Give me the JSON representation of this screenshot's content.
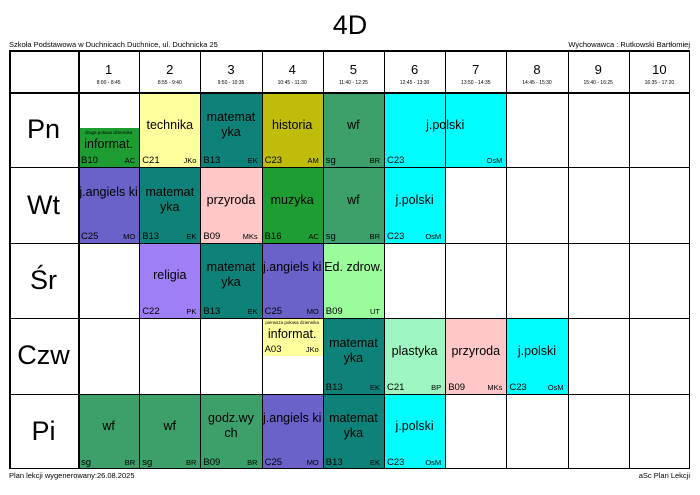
{
  "title": "4D",
  "school": "Szkoła Podstawowa w Duchnicach Duchnice, ul. Duchnicka 25",
  "teacher": "Wychowawca : Rutkowski Bartłomiej",
  "footer_left": "Plan lekcji wygenerowany:26.08.2025",
  "footer_right": "aSc Plan Lekcji",
  "periods": [
    {
      "num": "1",
      "time": "8:00 - 8:45"
    },
    {
      "num": "2",
      "time": "8:55 - 9:40"
    },
    {
      "num": "3",
      "time": "9:50 - 10:35"
    },
    {
      "num": "4",
      "time": "10:45 - 11:30"
    },
    {
      "num": "5",
      "time": "11:40 - 12:25"
    },
    {
      "num": "6",
      "time": "12:45 - 13:30"
    },
    {
      "num": "7",
      "time": "13:50 - 14:35"
    },
    {
      "num": "8",
      "time": "14:45 - 15:30"
    },
    {
      "num": "9",
      "time": "15:40 - 16:25"
    },
    {
      "num": "10",
      "time": "16:35 - 17:20"
    }
  ],
  "days": [
    "Pn",
    "Wt",
    "Śr",
    "Czw",
    "Pi"
  ],
  "lessons": [
    {
      "day": 0,
      "p": 0,
      "span": 1,
      "subject": "informat.",
      "room": "B10",
      "teacher": "AC",
      "color": "#1e9e32",
      "note": "druga połowa dziennika",
      "half": "bottom"
    },
    {
      "day": 0,
      "p": 1,
      "span": 1,
      "subject": "technika",
      "room": "C21",
      "teacher": "JKo",
      "color": "#ffff9e"
    },
    {
      "day": 0,
      "p": 2,
      "span": 1,
      "subject": "matemat yka",
      "room": "B13",
      "teacher": "EK",
      "color": "#0e8279"
    },
    {
      "day": 0,
      "p": 3,
      "span": 1,
      "subject": "historia",
      "room": "C23",
      "teacher": "AM",
      "color": "#bfbd09"
    },
    {
      "day": 0,
      "p": 4,
      "span": 1,
      "subject": "wf",
      "room": "sg",
      "teacher": "BR",
      "color": "#3da06a"
    },
    {
      "day": 0,
      "p": 5,
      "span": 2,
      "subject": "j.polski",
      "room": "C23",
      "teacher": "OsM",
      "color": "#00fefe"
    },
    {
      "day": 1,
      "p": 0,
      "span": 1,
      "subject": "j.angiels ki",
      "room": "C25",
      "teacher": "MO",
      "color": "#6a62c9"
    },
    {
      "day": 1,
      "p": 1,
      "span": 1,
      "subject": "matemat yka",
      "room": "B13",
      "teacher": "EK",
      "color": "#0e8279"
    },
    {
      "day": 1,
      "p": 2,
      "span": 1,
      "subject": "przyroda",
      "room": "B09",
      "teacher": "MKs",
      "color": "#ffc7c7"
    },
    {
      "day": 1,
      "p": 3,
      "span": 1,
      "subject": "muzyka",
      "room": "B16",
      "teacher": "AC",
      "color": "#1e9e32"
    },
    {
      "day": 1,
      "p": 4,
      "span": 1,
      "subject": "wf",
      "room": "sg",
      "teacher": "BR",
      "color": "#3da06a"
    },
    {
      "day": 1,
      "p": 5,
      "span": 1,
      "subject": "j.polski",
      "room": "C23",
      "teacher": "OsM",
      "color": "#00fefe"
    },
    {
      "day": 2,
      "p": 1,
      "span": 1,
      "subject": "religia",
      "room": "C22",
      "teacher": "PK",
      "color": "#9f7ff6"
    },
    {
      "day": 2,
      "p": 2,
      "span": 1,
      "subject": "matemat yka",
      "room": "B13",
      "teacher": "EK",
      "color": "#0e8279"
    },
    {
      "day": 2,
      "p": 3,
      "span": 1,
      "subject": "j.angiels ki",
      "room": "C25",
      "teacher": "MO",
      "color": "#6a62c9"
    },
    {
      "day": 2,
      "p": 4,
      "span": 1,
      "subject": "Ed. zdrow.",
      "room": "B09",
      "teacher": "UT",
      "color": "#9bfc9b"
    },
    {
      "day": 3,
      "p": 3,
      "span": 1,
      "subject": "informat.",
      "room": "A03",
      "teacher": "JKo",
      "color": "#ffff9e",
      "note": "pierwsza połowa dziennika",
      "half": "top"
    },
    {
      "day": 3,
      "p": 4,
      "span": 1,
      "subject": "matemat yka",
      "room": "B13",
      "teacher": "EK",
      "color": "#0e8279"
    },
    {
      "day": 3,
      "p": 5,
      "span": 1,
      "subject": "plastyka",
      "room": "C21",
      "teacher": "BP",
      "color": "#9ef7c2"
    },
    {
      "day": 3,
      "p": 6,
      "span": 1,
      "subject": "przyroda",
      "room": "B09",
      "teacher": "MKs",
      "color": "#ffc7c7"
    },
    {
      "day": 3,
      "p": 7,
      "span": 1,
      "subject": "j.polski",
      "room": "C23",
      "teacher": "OsM",
      "color": "#00fefe"
    },
    {
      "day": 4,
      "p": 0,
      "span": 1,
      "subject": "wf",
      "room": "sg",
      "teacher": "BR",
      "color": "#3da06a"
    },
    {
      "day": 4,
      "p": 1,
      "span": 1,
      "subject": "wf",
      "room": "sg",
      "teacher": "BR",
      "color": "#3da06a"
    },
    {
      "day": 4,
      "p": 2,
      "span": 1,
      "subject": "godz.wy ch",
      "room": "B09",
      "teacher": "BR",
      "color": "#3da06a"
    },
    {
      "day": 4,
      "p": 3,
      "span": 1,
      "subject": "j.angiels ki",
      "room": "C25",
      "teacher": "MO",
      "color": "#6a62c9"
    },
    {
      "day": 4,
      "p": 4,
      "span": 1,
      "subject": "matemat yka",
      "room": "B13",
      "teacher": "EK",
      "color": "#0e8279"
    },
    {
      "day": 4,
      "p": 5,
      "span": 1,
      "subject": "j.polski",
      "room": "C23",
      "teacher": "OsM",
      "color": "#00fefe"
    }
  ]
}
